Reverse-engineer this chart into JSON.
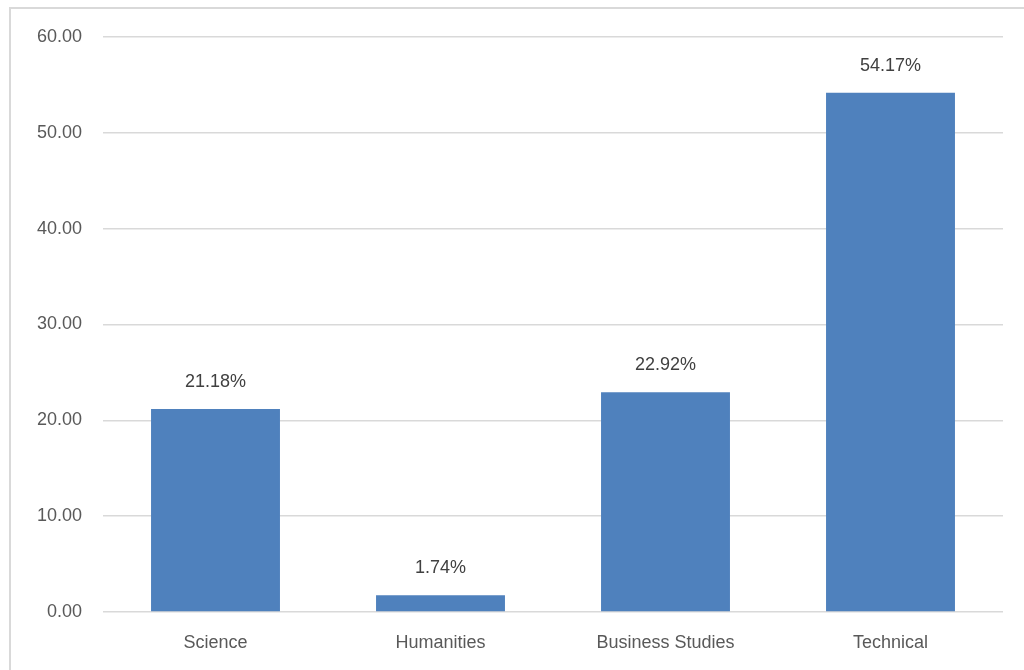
{
  "chart_data": {
    "type": "bar",
    "categories": [
      "Science",
      "Humanities",
      "Business Studies",
      "Technical"
    ],
    "values": [
      21.18,
      1.74,
      22.92,
      54.17
    ],
    "color": "#4f81bd",
    "value_labels": [
      "21.18%",
      "1.74%",
      "22.92%",
      "54.17%"
    ],
    "ylim": [
      0,
      60
    ],
    "yticks": [
      {
        "value": 0,
        "label": "0.00"
      },
      {
        "value": 10,
        "label": "10.00"
      },
      {
        "value": 20,
        "label": "20.00"
      },
      {
        "value": 30,
        "label": "30.00"
      },
      {
        "value": 40,
        "label": "40.00"
      },
      {
        "value": 50,
        "label": "50.00"
      },
      {
        "value": 60,
        "label": "60.00"
      }
    ],
    "grid": "y"
  }
}
